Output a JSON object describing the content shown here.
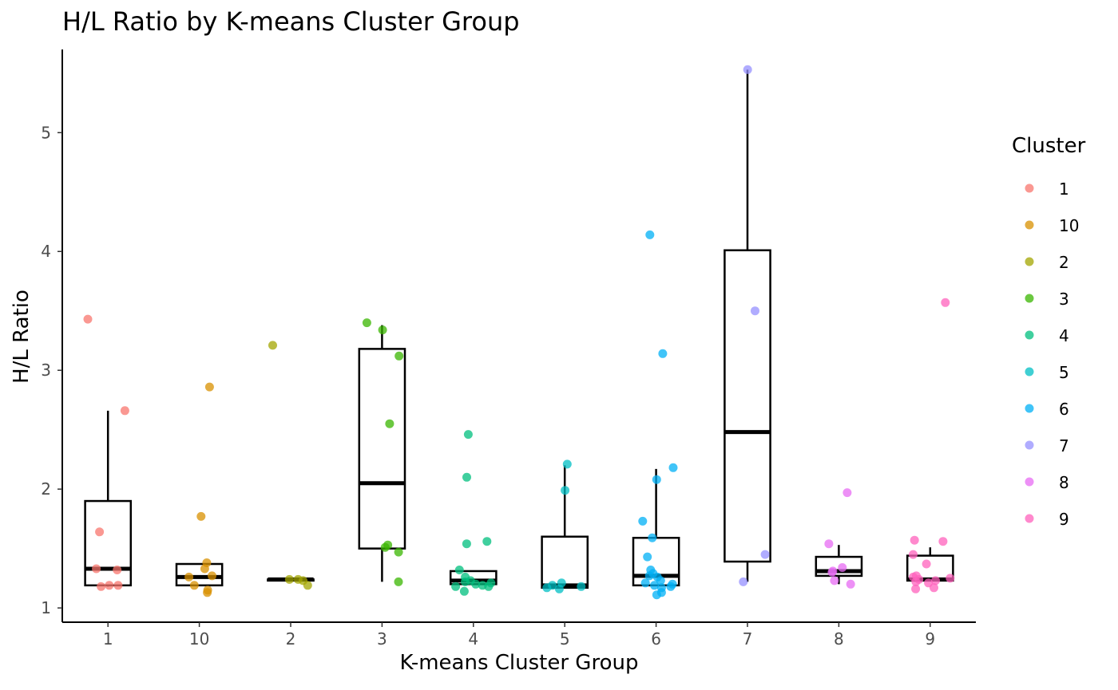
{
  "chart_data": {
    "type": "box",
    "title": "H/L Ratio by K-means Cluster Group",
    "xlabel": "K-means Cluster Group",
    "ylabel": "H/L Ratio",
    "ylim": [
      0.88,
      5.7
    ],
    "yticks": [
      1,
      2,
      3,
      4,
      5
    ],
    "grid": false,
    "legend": {
      "title": "Cluster",
      "position": "right",
      "entries": [
        "1",
        "10",
        "2",
        "3",
        "4",
        "5",
        "6",
        "7",
        "8",
        "9"
      ]
    },
    "categories": [
      "1",
      "10",
      "2",
      "3",
      "4",
      "5",
      "6",
      "7",
      "8",
      "9"
    ],
    "colors": {
      "1": "#F8766D",
      "10": "#D89000",
      "2": "#A3A500",
      "3": "#39B600",
      "4": "#00BF7D",
      "5": "#00BFC4",
      "6": "#00B0F6",
      "7": "#9590FF",
      "8": "#E76BF3",
      "9": "#FF62BC"
    },
    "boxes": [
      {
        "group": "1",
        "min": 1.18,
        "q1": 1.19,
        "median": 1.33,
        "q3": 1.9,
        "max": 2.66
      },
      {
        "group": "10",
        "min": 1.19,
        "q1": 1.19,
        "median": 1.26,
        "q3": 1.37,
        "max": 1.37
      },
      {
        "group": "2",
        "min": 1.23,
        "q1": 1.23,
        "median": 1.24,
        "q3": 1.24,
        "max": 1.24
      },
      {
        "group": "3",
        "min": 1.22,
        "q1": 1.5,
        "median": 2.05,
        "q3": 3.18,
        "max": 3.38
      },
      {
        "group": "4",
        "min": 1.2,
        "q1": 1.2,
        "median": 1.23,
        "q3": 1.31,
        "max": 1.31
      },
      {
        "group": "5",
        "min": 1.17,
        "q1": 1.17,
        "median": 1.19,
        "q3": 1.6,
        "max": 2.2
      },
      {
        "group": "6",
        "min": 1.19,
        "q1": 1.19,
        "median": 1.27,
        "q3": 1.59,
        "max": 2.17
      },
      {
        "group": "7",
        "min": 1.22,
        "q1": 1.39,
        "median": 2.48,
        "q3": 4.01,
        "max": 5.53
      },
      {
        "group": "8",
        "min": 1.2,
        "q1": 1.27,
        "median": 1.31,
        "q3": 1.43,
        "max": 1.53
      },
      {
        "group": "9",
        "min": 1.23,
        "q1": 1.23,
        "median": 1.24,
        "q3": 1.44,
        "max": 1.51
      }
    ],
    "points": [
      {
        "group": "1",
        "values": [
          3.43,
          2.66,
          1.64,
          1.33,
          1.32,
          1.19,
          1.18,
          1.19
        ]
      },
      {
        "group": "10",
        "values": [
          2.86,
          1.77,
          1.38,
          1.33,
          1.27,
          1.26,
          1.19,
          1.15,
          1.13
        ]
      },
      {
        "group": "2",
        "values": [
          3.21,
          1.24,
          1.24,
          1.19,
          1.23
        ]
      },
      {
        "group": "3",
        "values": [
          3.4,
          3.34,
          3.12,
          2.55,
          1.53,
          1.51,
          1.47,
          1.22
        ]
      },
      {
        "group": "4",
        "values": [
          2.46,
          2.1,
          1.56,
          1.54,
          1.32,
          1.26,
          1.23,
          1.22,
          1.21,
          1.2,
          1.19,
          1.18,
          1.18,
          1.14
        ]
      },
      {
        "group": "5",
        "values": [
          2.21,
          1.99,
          1.21,
          1.19,
          1.18,
          1.17,
          1.16
        ]
      },
      {
        "group": "6",
        "values": [
          4.14,
          3.14,
          2.18,
          2.08,
          1.73,
          1.59,
          1.43,
          1.32,
          1.29,
          1.27,
          1.26,
          1.23,
          1.21,
          1.2,
          1.19,
          1.18,
          1.17,
          1.13,
          1.11
        ]
      },
      {
        "group": "7",
        "values": [
          5.53,
          3.5,
          1.45,
          1.22
        ]
      },
      {
        "group": "8",
        "values": [
          1.97,
          1.54,
          1.34,
          1.31,
          1.3,
          1.23,
          1.2
        ]
      },
      {
        "group": "9",
        "values": [
          3.57,
          1.57,
          1.56,
          1.45,
          1.37,
          1.27,
          1.26,
          1.25,
          1.24,
          1.23,
          1.22,
          1.21,
          1.17,
          1.16
        ]
      }
    ]
  }
}
